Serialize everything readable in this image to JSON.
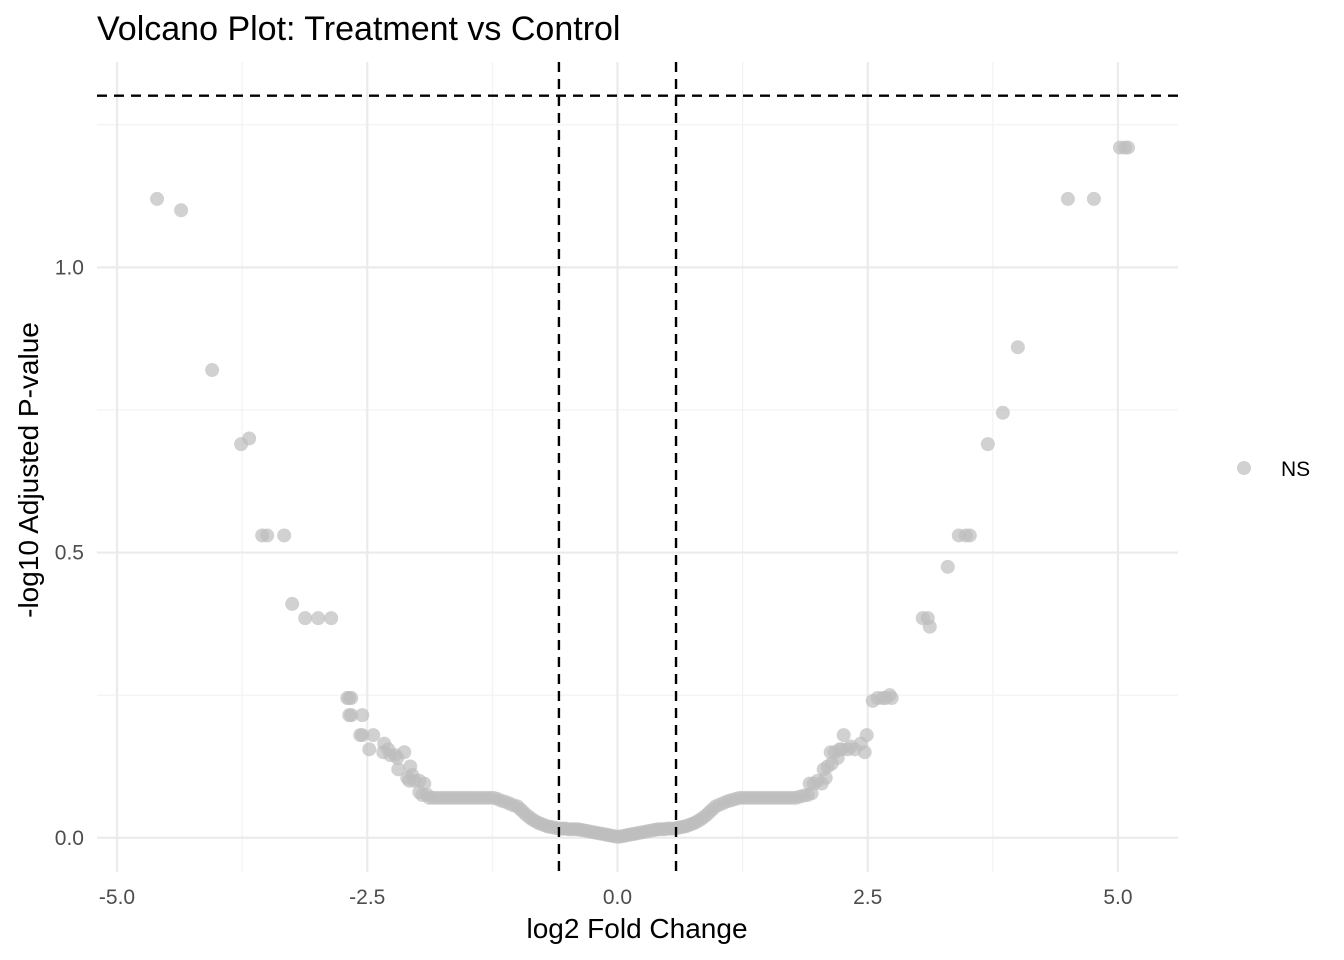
{
  "chart_data": {
    "type": "scatter",
    "title": "Volcano Plot: Treatment vs Control",
    "xlabel": "log2 Fold Change",
    "ylabel": "-log10 Adjusted P-value",
    "xlim": [
      -5.2,
      5.6
    ],
    "ylim": [
      -0.06,
      1.36
    ],
    "x_ticks": [
      -5.0,
      -2.5,
      0.0,
      2.5,
      5.0
    ],
    "x_tick_labels": [
      "-5.0",
      "-2.5",
      "0.0",
      "2.5",
      "5.0"
    ],
    "y_ticks": [
      0.0,
      0.5,
      1.0
    ],
    "y_tick_labels": [
      "0.0",
      "0.5",
      "1.0"
    ],
    "grid": true,
    "thresholds": {
      "log2fc": [
        -0.585,
        0.585
      ],
      "neg_log10_padj": 1.301
    },
    "legend": {
      "position": "right",
      "entries": [
        "NS"
      ]
    },
    "colors": {
      "NS": "#bdbdbd"
    },
    "series": [
      {
        "name": "NS",
        "points": [
          [
            -4.6,
            1.12
          ],
          [
            -4.36,
            1.1
          ],
          [
            -4.05,
            0.82
          ],
          [
            -3.76,
            0.69
          ],
          [
            -3.68,
            0.7
          ],
          [
            -3.55,
            0.53
          ],
          [
            -3.5,
            0.53
          ],
          [
            -3.33,
            0.53
          ],
          [
            -3.25,
            0.41
          ],
          [
            -3.12,
            0.385
          ],
          [
            -2.99,
            0.385
          ],
          [
            -2.86,
            0.385
          ],
          [
            -2.7,
            0.245
          ],
          [
            -2.68,
            0.245
          ],
          [
            -2.66,
            0.245
          ],
          [
            -2.68,
            0.215
          ],
          [
            -2.66,
            0.215
          ],
          [
            -2.55,
            0.215
          ],
          [
            -2.57,
            0.18
          ],
          [
            -2.55,
            0.18
          ],
          [
            -2.44,
            0.18
          ],
          [
            -2.48,
            0.155
          ],
          [
            -2.33,
            0.165
          ],
          [
            -2.29,
            0.155
          ],
          [
            -2.34,
            0.15
          ],
          [
            -2.27,
            0.145
          ],
          [
            -2.22,
            0.145
          ],
          [
            -2.2,
            0.14
          ],
          [
            -2.13,
            0.15
          ],
          [
            -2.19,
            0.12
          ],
          [
            -2.07,
            0.125
          ],
          [
            -2.1,
            0.105
          ],
          [
            -2.05,
            0.11
          ],
          [
            -2.08,
            0.1
          ],
          [
            -2.03,
            0.1
          ],
          [
            -1.98,
            0.1
          ],
          [
            -1.93,
            0.095
          ],
          [
            -1.98,
            0.08
          ],
          [
            -1.95,
            0.075
          ],
          [
            -1.9,
            0.075
          ],
          [
            -1.88,
            0.07
          ],
          [
            -1.84,
            0.07
          ],
          [
            -1.8,
            0.07
          ],
          [
            -1.76,
            0.07
          ],
          [
            -1.72,
            0.07
          ],
          [
            -1.68,
            0.07
          ],
          [
            -1.64,
            0.07
          ],
          [
            -1.6,
            0.07
          ],
          [
            -1.56,
            0.07
          ],
          [
            -1.52,
            0.07
          ],
          [
            -1.48,
            0.07
          ],
          [
            -1.44,
            0.07
          ],
          [
            -1.4,
            0.07
          ],
          [
            -1.36,
            0.07
          ],
          [
            -1.32,
            0.07
          ],
          [
            -1.28,
            0.07
          ],
          [
            -1.24,
            0.07
          ],
          [
            -1.2,
            0.068
          ],
          [
            -1.16,
            0.065
          ],
          [
            -1.12,
            0.063
          ],
          [
            -1.08,
            0.06
          ],
          [
            -1.04,
            0.057
          ],
          [
            -1.0,
            0.055
          ],
          [
            -0.97,
            0.05
          ],
          [
            -0.94,
            0.045
          ],
          [
            -0.91,
            0.04
          ],
          [
            -0.88,
            0.036
          ],
          [
            -0.85,
            0.032
          ],
          [
            -0.82,
            0.029
          ],
          [
            -0.79,
            0.026
          ],
          [
            -0.76,
            0.024
          ],
          [
            -0.73,
            0.022
          ],
          [
            -0.7,
            0.02
          ],
          [
            -0.67,
            0.019
          ],
          [
            -0.64,
            0.018
          ],
          [
            -0.61,
            0.017
          ],
          [
            -0.58,
            0.016
          ],
          [
            -0.55,
            0.016
          ],
          [
            -0.52,
            0.016
          ],
          [
            -0.49,
            0.015
          ],
          [
            -0.46,
            0.015
          ],
          [
            -0.43,
            0.015
          ],
          [
            -0.4,
            0.015
          ],
          [
            -0.37,
            0.014
          ],
          [
            -0.34,
            0.013
          ],
          [
            -0.31,
            0.012
          ],
          [
            -0.28,
            0.011
          ],
          [
            -0.25,
            0.01
          ],
          [
            -0.22,
            0.009
          ],
          [
            -0.19,
            0.008
          ],
          [
            -0.16,
            0.007
          ],
          [
            -0.13,
            0.006
          ],
          [
            -0.1,
            0.005
          ],
          [
            -0.07,
            0.004
          ],
          [
            -0.04,
            0.003
          ],
          [
            -0.01,
            0.002
          ],
          [
            0.02,
            0.002
          ],
          [
            0.05,
            0.003
          ],
          [
            0.08,
            0.004
          ],
          [
            0.11,
            0.005
          ],
          [
            0.14,
            0.006
          ],
          [
            0.17,
            0.007
          ],
          [
            0.2,
            0.008
          ],
          [
            0.23,
            0.009
          ],
          [
            0.26,
            0.01
          ],
          [
            0.29,
            0.011
          ],
          [
            0.32,
            0.012
          ],
          [
            0.35,
            0.013
          ],
          [
            0.38,
            0.014
          ],
          [
            0.41,
            0.015
          ],
          [
            0.44,
            0.015
          ],
          [
            0.47,
            0.015
          ],
          [
            0.5,
            0.016
          ],
          [
            0.53,
            0.016
          ],
          [
            0.56,
            0.016
          ],
          [
            0.59,
            0.017
          ],
          [
            0.62,
            0.018
          ],
          [
            0.65,
            0.019
          ],
          [
            0.68,
            0.02
          ],
          [
            0.71,
            0.022
          ],
          [
            0.74,
            0.024
          ],
          [
            0.77,
            0.026
          ],
          [
            0.8,
            0.029
          ],
          [
            0.83,
            0.032
          ],
          [
            0.86,
            0.036
          ],
          [
            0.89,
            0.04
          ],
          [
            0.92,
            0.045
          ],
          [
            0.95,
            0.05
          ],
          [
            0.98,
            0.055
          ],
          [
            1.02,
            0.058
          ],
          [
            1.06,
            0.061
          ],
          [
            1.1,
            0.064
          ],
          [
            1.14,
            0.066
          ],
          [
            1.18,
            0.068
          ],
          [
            1.22,
            0.07
          ],
          [
            1.26,
            0.07
          ],
          [
            1.3,
            0.07
          ],
          [
            1.34,
            0.07
          ],
          [
            1.38,
            0.07
          ],
          [
            1.42,
            0.07
          ],
          [
            1.46,
            0.07
          ],
          [
            1.5,
            0.07
          ],
          [
            1.54,
            0.07
          ],
          [
            1.58,
            0.07
          ],
          [
            1.62,
            0.07
          ],
          [
            1.66,
            0.07
          ],
          [
            1.7,
            0.07
          ],
          [
            1.74,
            0.07
          ],
          [
            1.78,
            0.07
          ],
          [
            1.82,
            0.072
          ],
          [
            1.86,
            0.074
          ],
          [
            1.9,
            0.075
          ],
          [
            1.94,
            0.078
          ],
          [
            1.92,
            0.095
          ],
          [
            1.96,
            0.095
          ],
          [
            2.0,
            0.1
          ],
          [
            2.04,
            0.095
          ],
          [
            2.08,
            0.105
          ],
          [
            2.06,
            0.12
          ],
          [
            2.1,
            0.125
          ],
          [
            2.14,
            0.13
          ],
          [
            2.13,
            0.15
          ],
          [
            2.17,
            0.15
          ],
          [
            2.2,
            0.14
          ],
          [
            2.22,
            0.155
          ],
          [
            2.24,
            0.155
          ],
          [
            2.26,
            0.18
          ],
          [
            2.3,
            0.155
          ],
          [
            2.33,
            0.16
          ],
          [
            2.37,
            0.155
          ],
          [
            2.43,
            0.165
          ],
          [
            2.47,
            0.15
          ],
          [
            2.49,
            0.18
          ],
          [
            2.55,
            0.24
          ],
          [
            2.6,
            0.245
          ],
          [
            2.65,
            0.245
          ],
          [
            2.68,
            0.245
          ],
          [
            2.72,
            0.25
          ],
          [
            2.74,
            0.245
          ],
          [
            3.05,
            0.385
          ],
          [
            3.1,
            0.385
          ],
          [
            3.12,
            0.37
          ],
          [
            3.3,
            0.475
          ],
          [
            3.41,
            0.53
          ],
          [
            3.48,
            0.53
          ],
          [
            3.52,
            0.53
          ],
          [
            3.7,
            0.69
          ],
          [
            3.85,
            0.745
          ],
          [
            4.0,
            0.86
          ],
          [
            4.5,
            1.12
          ],
          [
            4.76,
            1.12
          ],
          [
            5.02,
            1.21
          ],
          [
            5.07,
            1.21
          ],
          [
            5.1,
            1.21
          ]
        ]
      }
    ]
  }
}
